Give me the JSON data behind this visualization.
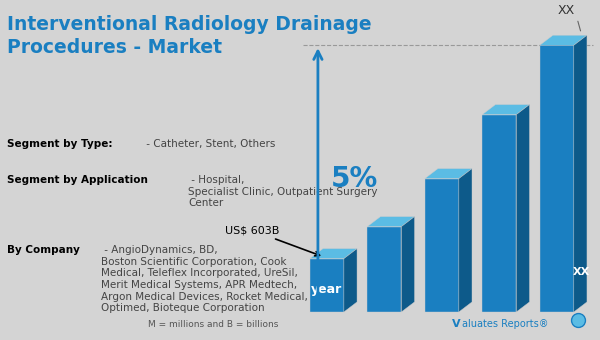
{
  "title": "Interventional Radiology Drainage\nProcedures - Market",
  "title_color": "#1a7fc1",
  "title_fontsize": 13.5,
  "bg_color": "#d4d4d4",
  "bar_color_face": "#1a7fc1",
  "bar_color_top": "#5bbce4",
  "bar_color_side": "#0d5a8a",
  "bars": [
    1.0,
    1.6,
    2.5,
    3.7,
    5.0
  ],
  "label_year": "year",
  "label_value": "US$ 603B",
  "label_pct": "5%",
  "label_xx_top": "XX",
  "label_xx_bottom": "XX",
  "footnote": "M = millions and B = billions",
  "brand_color": "#1a7fc1",
  "text_fontsize": 7.5
}
